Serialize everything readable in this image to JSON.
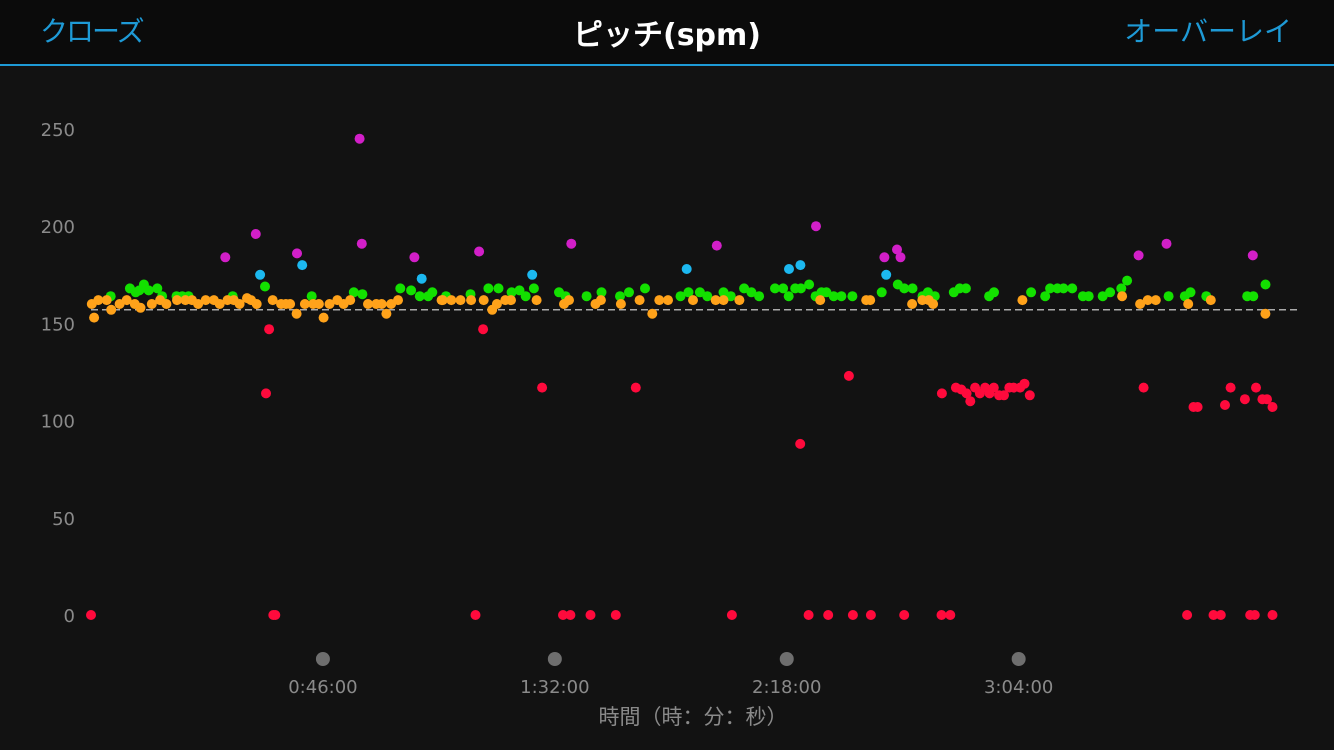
{
  "header": {
    "close_label": "クローズ",
    "title": "ピッチ(spm)",
    "overlay_label": "オーバーレイ"
  },
  "colors": {
    "accent": "#1e9ad6",
    "green": "#13e000",
    "orange": "#ffa21a",
    "red": "#ff0a3c",
    "magenta": "#d21fc8",
    "blue": "#1cb8f0",
    "reference_line": "#dddddd"
  },
  "chart_data": {
    "type": "scatter",
    "xlabel": "時間（時：分：秒）",
    "ylabel": "",
    "ylim": [
      0,
      275
    ],
    "xlim": [
      "0:00:00",
      "4:00:00"
    ],
    "yticks": [
      0,
      50,
      100,
      150,
      200,
      250
    ],
    "xticks": [
      "0:46:00",
      "1:32:00",
      "2:18:00",
      "3:04:00"
    ],
    "reference_line": 157,
    "grid": false,
    "series": [
      {
        "color": "green",
        "points": [
          [
            "0:03:54",
            164
          ],
          [
            "0:07:43",
            168
          ],
          [
            "0:08:52",
            166
          ],
          [
            "0:09:35",
            167
          ],
          [
            "0:10:30",
            170
          ],
          [
            "0:11:27",
            167
          ],
          [
            "0:13:09",
            168
          ],
          [
            "0:14:06",
            164
          ],
          [
            "0:16:57",
            164
          ],
          [
            "0:18:06",
            164
          ],
          [
            "0:19:20",
            164
          ],
          [
            "0:28:06",
            164
          ],
          [
            "0:34:31",
            169
          ],
          [
            "0:43:47",
            164
          ],
          [
            "0:52:07",
            166
          ],
          [
            "0:53:50",
            165
          ],
          [
            "0:61:21",
            168
          ],
          [
            "0:63:30",
            167
          ],
          [
            "1:05:13",
            164
          ],
          [
            "1:06:53",
            164
          ],
          [
            "1:07:42",
            166
          ],
          [
            "1:10:25",
            164
          ],
          [
            "1:15:16",
            165
          ],
          [
            "1:18:49",
            168
          ],
          [
            "1:20:49",
            168
          ],
          [
            "1:23:26",
            166
          ],
          [
            "1:24:59",
            167
          ],
          [
            "1:26:13",
            164
          ],
          [
            "1:27:51",
            168
          ],
          [
            "1:32:50",
            166
          ],
          [
            "1:34:07",
            164
          ],
          [
            "1:38:18",
            164
          ],
          [
            "1:41:15",
            166
          ],
          [
            "1:44:55",
            164
          ],
          [
            "1:46:43",
            166
          ],
          [
            "1:49:53",
            168
          ],
          [
            "1:56:55",
            164
          ],
          [
            "1:58:31",
            166
          ],
          [
            "2:00:46",
            166
          ],
          [
            "2:02:14",
            164
          ],
          [
            "2:05:27",
            166
          ],
          [
            "2:06:54",
            164
          ],
          [
            "2:09:33",
            168
          ],
          [
            "2:10:59",
            166
          ],
          [
            "2:12:31",
            164
          ],
          [
            "2:15:40",
            168
          ],
          [
            "2:17:17",
            168
          ],
          [
            "2:18:23",
            164
          ],
          [
            "2:19:41",
            168
          ],
          [
            "2:20:48",
            168
          ],
          [
            "2:22:26",
            170
          ],
          [
            "2:23:43",
            164
          ],
          [
            "2:24:54",
            166
          ],
          [
            "2:25:52",
            166
          ],
          [
            "2:27:19",
            164
          ],
          [
            "2:28:50",
            164
          ],
          [
            "2:31:01",
            164
          ],
          [
            "2:40:02",
            170
          ],
          [
            "2:41:19",
            168
          ],
          [
            "2:42:56",
            168
          ],
          [
            "2:44:55",
            164
          ],
          [
            "2:46:00",
            166
          ],
          [
            "2:47:22",
            164
          ],
          [
            "2:51:08",
            166
          ],
          [
            "2:52:18",
            168
          ],
          [
            "2:53:32",
            168
          ],
          [
            "2:58:08",
            164
          ],
          [
            "2:59:06",
            166
          ],
          [
            "3:06:28",
            166
          ],
          [
            "3:09:16",
            164
          ],
          [
            "3:10:14",
            168
          ],
          [
            "3:11:41",
            168
          ],
          [
            "3:12:54",
            168
          ],
          [
            "3:14:37",
            168
          ],
          [
            "3:16:44",
            164
          ],
          [
            "3:17:53",
            164
          ],
          [
            "3:20:40",
            164
          ],
          [
            "3:22:08",
            166
          ],
          [
            "3:24:21",
            168
          ],
          [
            "3:25:30",
            172
          ],
          [
            "3:33:44",
            164
          ],
          [
            "3:36:57",
            164
          ],
          [
            "3:38:05",
            166
          ],
          [
            "3:41:13",
            164
          ],
          [
            "3:49:20",
            164
          ],
          [
            "3:50:32",
            164
          ],
          [
            "3:52:57",
            170
          ],
          [
            "2:36:50",
            166
          ]
        ]
      },
      {
        "color": "orange",
        "points": [
          [
            "0:00:09",
            160
          ],
          [
            "0:00:37",
            153
          ],
          [
            "0:01:27",
            162
          ],
          [
            "0:03:07",
            162
          ],
          [
            "0:04:00",
            157
          ],
          [
            "0:05:40",
            160
          ],
          [
            "0:07:05",
            162
          ],
          [
            "0:08:41",
            160
          ],
          [
            "0:09:49",
            158
          ],
          [
            "0:12:04",
            160
          ],
          [
            "0:13:42",
            162
          ],
          [
            "0:14:57",
            160
          ],
          [
            "0:17:04",
            162
          ],
          [
            "0:18:43",
            162
          ],
          [
            "0:20:02",
            162
          ],
          [
            "0:21:14",
            160
          ],
          [
            "0:22:45",
            162
          ],
          [
            "0:24:23",
            162
          ],
          [
            "0:25:32",
            160
          ],
          [
            "0:27:04",
            162
          ],
          [
            "0:28:20",
            162
          ],
          [
            "0:29:29",
            160
          ],
          [
            "0:30:56",
            163
          ],
          [
            "0:31:45",
            162
          ],
          [
            "0:32:52",
            160
          ],
          [
            "0:36:02",
            162
          ],
          [
            "0:37:42",
            160
          ],
          [
            "0:38:39",
            160
          ],
          [
            "0:39:30",
            160
          ],
          [
            "0:40:47",
            155
          ],
          [
            "0:42:25",
            160
          ],
          [
            "0:44:04",
            160
          ],
          [
            "0:45:12",
            160
          ],
          [
            "0:46:08",
            153
          ],
          [
            "0:47:18",
            160
          ],
          [
            "0:48:51",
            162
          ],
          [
            "0:50:06",
            160
          ],
          [
            "0:51:25",
            162
          ],
          [
            "0:54:57",
            160
          ],
          [
            "0:56:35",
            160
          ],
          [
            "0:57:40",
            160
          ],
          [
            "0:58:36",
            155
          ],
          [
            "0:59:32",
            160
          ],
          [
            "0:60:54",
            162
          ],
          [
            "0:69:32",
            162
          ],
          [
            "0:69:46",
            162
          ],
          [
            "0:71:28",
            162
          ],
          [
            "0:73:17",
            162
          ],
          [
            "0:75:23",
            162
          ],
          [
            "0:77:53",
            162
          ],
          [
            "1:20:30",
            160
          ],
          [
            "1:19:35",
            157
          ],
          [
            "1:22:10",
            162
          ],
          [
            "1:23:18",
            162
          ],
          [
            "1:28:23",
            162
          ],
          [
            "1:33:49",
            160
          ],
          [
            "1:34:49",
            162
          ],
          [
            "1:40:04",
            160
          ],
          [
            "1:41:08",
            162
          ],
          [
            "1:45:06",
            160
          ],
          [
            "1:48:49",
            162
          ],
          [
            "1:51:20",
            155
          ],
          [
            "1:52:43",
            162
          ],
          [
            "1:54:27",
            162
          ],
          [
            "1:59:24",
            162
          ],
          [
            "2:03:55",
            162
          ],
          [
            "2:05:27",
            162
          ],
          [
            "2:08:37",
            162
          ],
          [
            "2:24:38",
            162
          ],
          [
            "2:33:46",
            162
          ],
          [
            "2:34:33",
            162
          ],
          [
            "2:42:52",
            160
          ],
          [
            "2:44:53",
            162
          ],
          [
            "2:46:11",
            162
          ],
          [
            "2:47:02",
            160
          ],
          [
            "3:04:45",
            162
          ],
          [
            "3:24:31",
            164
          ],
          [
            "3:28:05",
            160
          ],
          [
            "3:29:37",
            162
          ],
          [
            "3:31:12",
            162
          ],
          [
            "3:37:37",
            160
          ],
          [
            "3:42:06",
            162
          ],
          [
            "3:52:56",
            155
          ]
        ]
      },
      {
        "color": "red",
        "points": [
          [
            "0:00:00",
            0
          ],
          [
            "0:34:43",
            114
          ],
          [
            "0:35:20",
            147
          ],
          [
            "0:36:10",
            0
          ],
          [
            "0:36:33",
            0
          ],
          [
            "1:16:16",
            0
          ],
          [
            "1:17:46",
            147
          ],
          [
            "1:29:29",
            117
          ],
          [
            "1:33:37",
            0
          ],
          [
            "1:35:05",
            0
          ],
          [
            "1:39:04",
            0
          ],
          [
            "1:44:06",
            0
          ],
          [
            "1:48:03",
            117
          ],
          [
            "2:07:07",
            0
          ],
          [
            "2:20:40",
            88
          ],
          [
            "2:22:20",
            0
          ],
          [
            "2:26:13",
            0
          ],
          [
            "2:30:20",
            123
          ],
          [
            "2:31:07",
            0
          ],
          [
            "2:34:41",
            0
          ],
          [
            "2:41:18",
            0
          ],
          [
            "2:48:42",
            0
          ],
          [
            "2:50:26",
            0
          ],
          [
            "2:48:46",
            114
          ],
          [
            "2:51:33",
            117
          ],
          [
            "2:52:37",
            116
          ],
          [
            "2:53:40",
            114
          ],
          [
            "2:54:24",
            110
          ],
          [
            "2:55:22",
            117
          ],
          [
            "2:56:19",
            114
          ],
          [
            "2:57:20",
            117
          ],
          [
            "2:58:14",
            114
          ],
          [
            "2:59:04",
            117
          ],
          [
            "3:00:07",
            113
          ],
          [
            "3:01:05",
            113
          ],
          [
            "3:02:09",
            117
          ],
          [
            "3:03:00",
            117
          ],
          [
            "3:04:17",
            117
          ],
          [
            "3:05:09",
            119
          ],
          [
            "3:06:12",
            113
          ],
          [
            "3:28:47",
            117
          ],
          [
            "3:37:24",
            0
          ],
          [
            "3:38:41",
            107
          ],
          [
            "3:39:30",
            107
          ],
          [
            "3:42:39",
            0
          ],
          [
            "3:44:05",
            0
          ],
          [
            "3:44:55",
            108
          ],
          [
            "3:46:02",
            117
          ],
          [
            "3:48:52",
            111
          ],
          [
            "3:49:56",
            0
          ],
          [
            "3:50:50",
            0
          ],
          [
            "3:51:05",
            117
          ],
          [
            "3:52:21",
            111
          ],
          [
            "3:53:15",
            111
          ],
          [
            "3:54:21",
            107
          ],
          [
            "3:54:21",
            0
          ]
        ]
      },
      {
        "color": "magenta",
        "points": [
          [
            "0:26:38",
            184
          ],
          [
            "0:32:41",
            196
          ],
          [
            "0:40:51",
            186
          ],
          [
            "0:53:17",
            245
          ],
          [
            "0:53:43",
            191
          ],
          [
            "0:64:09",
            184
          ],
          [
            "1:16:59",
            187
          ],
          [
            "1:35:16",
            191
          ],
          [
            "2:04:08",
            190
          ],
          [
            "2:23:48",
            200
          ],
          [
            "2:37:22",
            184
          ],
          [
            "2:39:52",
            188
          ],
          [
            "2:40:34",
            184
          ],
          [
            "3:27:47",
            185
          ],
          [
            "3:33:19",
            191
          ],
          [
            "3:50:26",
            185
          ]
        ]
      },
      {
        "color": "blue",
        "points": [
          [
            "0:33:33",
            175
          ],
          [
            "0:41:53",
            180
          ],
          [
            "0:65:36",
            173
          ],
          [
            "1:27:31",
            175
          ],
          [
            "1:58:09",
            178
          ],
          [
            "2:18:27",
            178
          ],
          [
            "2:20:43",
            180
          ],
          [
            "2:37:43",
            175
          ]
        ]
      }
    ]
  }
}
